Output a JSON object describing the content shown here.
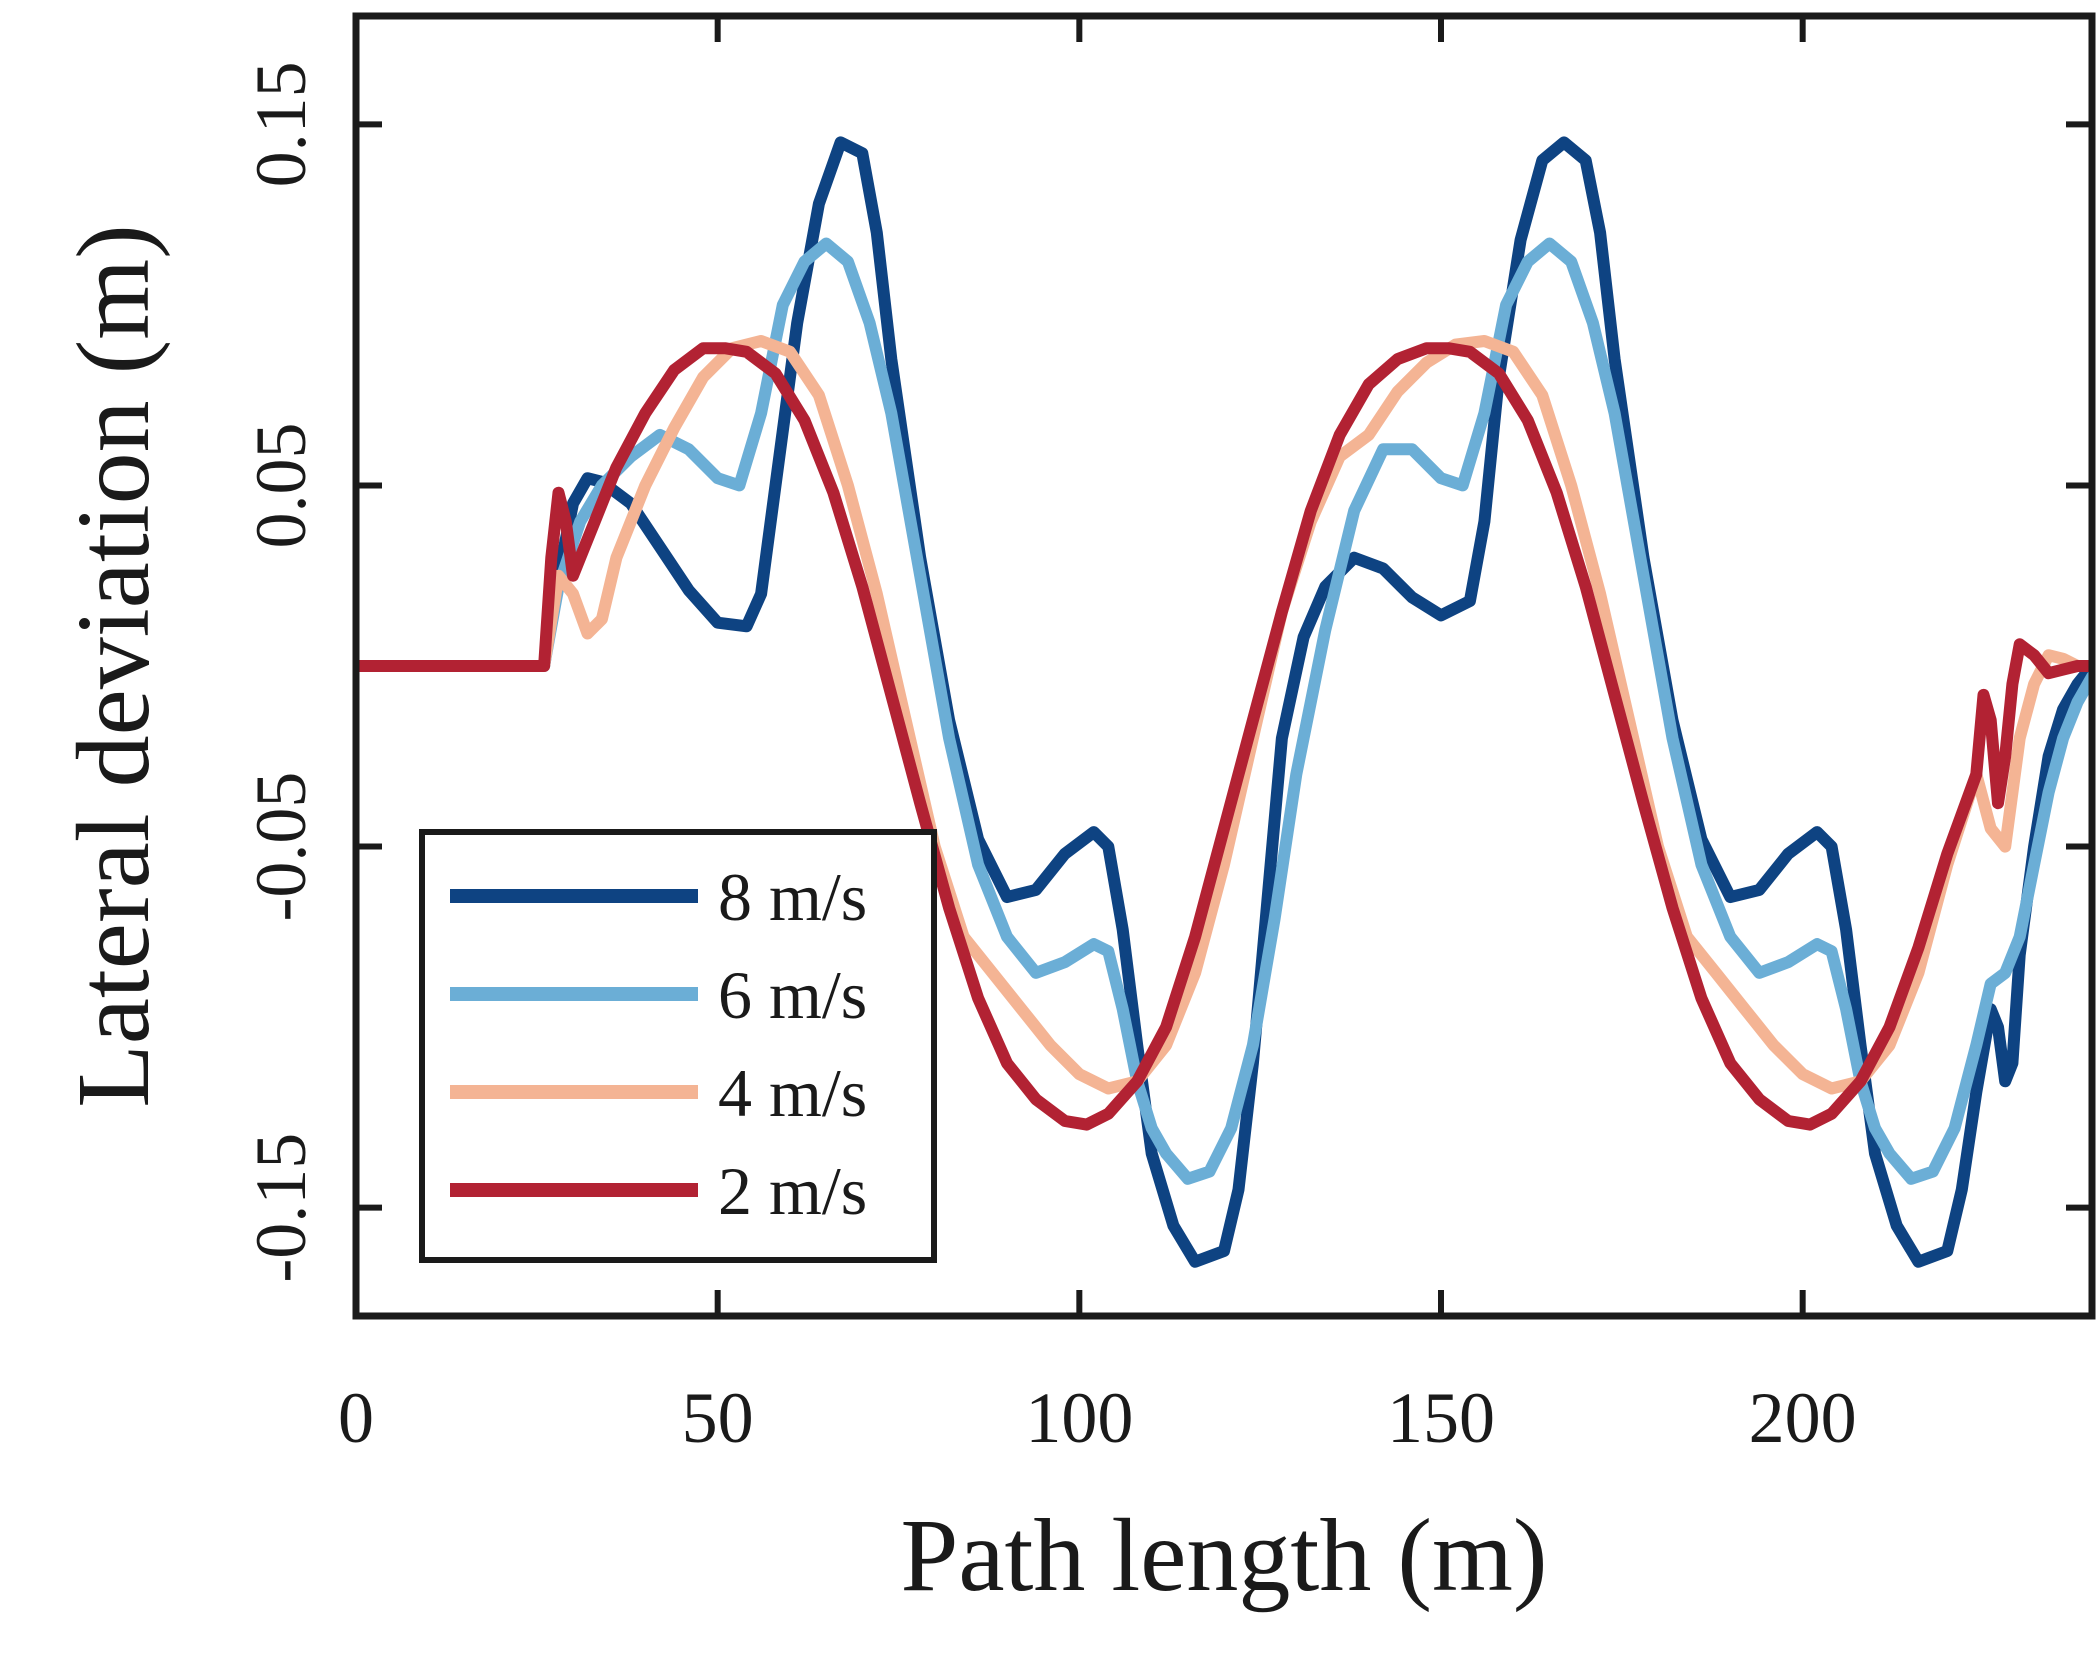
{
  "chart_data": {
    "type": "line",
    "title": "",
    "xlabel": "Path length (m)",
    "ylabel": "Lateral deviation (m)",
    "xlim": [
      0,
      240
    ],
    "ylim": [
      -0.18,
      0.18
    ],
    "xticks": [
      0,
      50,
      100,
      150,
      200
    ],
    "xtick_labels": [
      "0",
      "50",
      "100",
      "150",
      "200"
    ],
    "yticks": [
      -0.15,
      -0.05,
      0.05,
      0.15
    ],
    "ytick_labels": [
      "-0.15",
      "-0.05",
      "0.05",
      "0.15"
    ],
    "grid": false,
    "legend_position": "bottom-left",
    "series": [
      {
        "name": "8 m/s",
        "color": "#0e4382",
        "x": [
          0,
          26,
          28,
          30,
          32,
          34,
          38,
          42,
          46,
          50,
          54,
          56,
          58,
          61,
          64,
          67,
          70,
          72,
          74,
          78,
          82,
          86,
          90,
          94,
          98,
          102,
          104,
          106,
          108,
          110,
          113,
          116,
          120,
          122,
          124,
          126,
          128,
          131,
          134,
          138,
          142,
          146,
          150,
          154,
          156,
          158,
          161,
          164,
          167,
          170,
          172,
          174,
          178,
          182,
          186,
          190,
          194,
          198,
          202,
          204,
          206,
          208,
          210,
          213,
          216,
          220,
          222,
          224,
          226,
          227,
          228,
          229,
          230,
          232,
          234,
          236,
          238,
          240
        ],
        "y": [
          0.0,
          0.0,
          0.025,
          0.045,
          0.052,
          0.051,
          0.045,
          0.033,
          0.021,
          0.012,
          0.011,
          0.02,
          0.05,
          0.095,
          0.128,
          0.145,
          0.142,
          0.12,
          0.085,
          0.03,
          -0.015,
          -0.048,
          -0.064,
          -0.062,
          -0.052,
          -0.046,
          -0.05,
          -0.073,
          -0.105,
          -0.135,
          -0.155,
          -0.165,
          -0.162,
          -0.145,
          -0.11,
          -0.065,
          -0.02,
          0.008,
          0.022,
          0.03,
          0.027,
          0.019,
          0.014,
          0.018,
          0.04,
          0.08,
          0.118,
          0.14,
          0.145,
          0.14,
          0.12,
          0.085,
          0.03,
          -0.015,
          -0.048,
          -0.064,
          -0.062,
          -0.052,
          -0.046,
          -0.05,
          -0.073,
          -0.105,
          -0.135,
          -0.155,
          -0.165,
          -0.162,
          -0.145,
          -0.118,
          -0.095,
          -0.1,
          -0.115,
          -0.11,
          -0.08,
          -0.05,
          -0.025,
          -0.012,
          -0.005,
          0.0
        ]
      },
      {
        "name": "6 m/s",
        "color": "#6baed6",
        "x": [
          0,
          26,
          28,
          31,
          34,
          38,
          42,
          46,
          50,
          53,
          56,
          59,
          62,
          65,
          68,
          71,
          74,
          78,
          82,
          86,
          90,
          94,
          98,
          102,
          104,
          106,
          108,
          110,
          112,
          115,
          118,
          121,
          124,
          127,
          130,
          134,
          138,
          142,
          146,
          150,
          153,
          156,
          159,
          162,
          165,
          168,
          171,
          174,
          178,
          182,
          186,
          190,
          194,
          198,
          202,
          204,
          206,
          208,
          210,
          212,
          215,
          218,
          221,
          224,
          226,
          228,
          230,
          232,
          234,
          236,
          238,
          240
        ],
        "y": [
          0.0,
          0.0,
          0.022,
          0.04,
          0.05,
          0.058,
          0.064,
          0.06,
          0.052,
          0.05,
          0.07,
          0.1,
          0.112,
          0.117,
          0.112,
          0.095,
          0.07,
          0.025,
          -0.02,
          -0.055,
          -0.075,
          -0.085,
          -0.082,
          -0.077,
          -0.079,
          -0.095,
          -0.115,
          -0.128,
          -0.135,
          -0.142,
          -0.14,
          -0.128,
          -0.105,
          -0.07,
          -0.03,
          0.01,
          0.043,
          0.06,
          0.06,
          0.052,
          0.05,
          0.07,
          0.1,
          0.112,
          0.117,
          0.112,
          0.095,
          0.07,
          0.025,
          -0.02,
          -0.055,
          -0.075,
          -0.085,
          -0.082,
          -0.077,
          -0.079,
          -0.095,
          -0.115,
          -0.128,
          -0.135,
          -0.142,
          -0.14,
          -0.128,
          -0.105,
          -0.088,
          -0.085,
          -0.075,
          -0.055,
          -0.035,
          -0.02,
          -0.01,
          -0.003
        ]
      },
      {
        "name": "4 m/s",
        "color": "#f4b494",
        "x": [
          0,
          26,
          28,
          30,
          32,
          34,
          36,
          40,
          44,
          48,
          52,
          56,
          60,
          64,
          68,
          72,
          76,
          80,
          84,
          88,
          92,
          96,
          100,
          104,
          108,
          112,
          116,
          120,
          124,
          128,
          132,
          136,
          140,
          144,
          148,
          152,
          156,
          160,
          164,
          168,
          172,
          176,
          180,
          184,
          188,
          192,
          196,
          200,
          204,
          208,
          212,
          216,
          220,
          224,
          226,
          228,
          230,
          232,
          234,
          236,
          238,
          240
        ],
        "y": [
          0.0,
          0.0,
          0.025,
          0.02,
          0.009,
          0.013,
          0.03,
          0.05,
          0.066,
          0.08,
          0.088,
          0.09,
          0.087,
          0.075,
          0.05,
          0.02,
          -0.015,
          -0.05,
          -0.075,
          -0.085,
          -0.095,
          -0.105,
          -0.113,
          -0.117,
          -0.115,
          -0.105,
          -0.085,
          -0.055,
          -0.02,
          0.015,
          0.04,
          0.058,
          0.064,
          0.076,
          0.084,
          0.089,
          0.09,
          0.087,
          0.075,
          0.05,
          0.02,
          -0.015,
          -0.05,
          -0.075,
          -0.085,
          -0.095,
          -0.105,
          -0.113,
          -0.117,
          -0.115,
          -0.105,
          -0.085,
          -0.055,
          -0.03,
          -0.045,
          -0.05,
          -0.02,
          -0.005,
          0.003,
          0.002,
          0.0,
          0.0
        ]
      },
      {
        "name": "2 m/s",
        "color": "#b22233",
        "x": [
          0,
          26,
          27,
          28,
          29,
          30,
          31,
          33,
          36,
          40,
          44,
          48,
          51,
          54,
          58,
          62,
          66,
          70,
          74,
          78,
          82,
          86,
          90,
          94,
          98,
          101,
          104,
          108,
          112,
          116,
          120,
          124,
          128,
          132,
          136,
          140,
          144,
          148,
          151,
          154,
          158,
          162,
          166,
          170,
          174,
          178,
          182,
          186,
          190,
          194,
          198,
          201,
          204,
          208,
          212,
          216,
          220,
          224,
          225,
          226,
          227,
          228,
          229,
          230,
          232,
          234,
          236,
          238,
          240
        ],
        "y": [
          0.0,
          0.0,
          0.03,
          0.048,
          0.04,
          0.025,
          0.03,
          0.04,
          0.055,
          0.07,
          0.082,
          0.088,
          0.088,
          0.087,
          0.081,
          0.068,
          0.048,
          0.022,
          -0.008,
          -0.038,
          -0.067,
          -0.092,
          -0.11,
          -0.12,
          -0.126,
          -0.127,
          -0.124,
          -0.115,
          -0.1,
          -0.075,
          -0.045,
          -0.015,
          0.015,
          0.043,
          0.064,
          0.078,
          0.085,
          0.088,
          0.088,
          0.087,
          0.081,
          0.068,
          0.048,
          0.022,
          -0.008,
          -0.038,
          -0.067,
          -0.092,
          -0.11,
          -0.12,
          -0.126,
          -0.127,
          -0.124,
          -0.115,
          -0.1,
          -0.078,
          -0.052,
          -0.03,
          -0.008,
          -0.015,
          -0.038,
          -0.025,
          -0.005,
          0.006,
          0.003,
          -0.002,
          -0.001,
          0.0,
          0.0
        ]
      }
    ]
  }
}
